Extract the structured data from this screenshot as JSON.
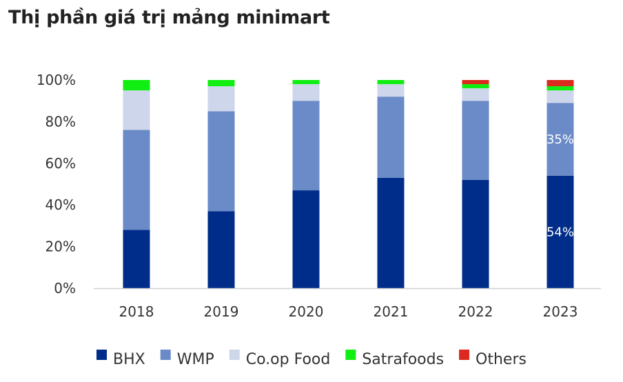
{
  "chart_data": {
    "type": "bar",
    "stacked": true,
    "title": "Thị phần giá trị mảng minimart",
    "xlabel": "",
    "ylabel": "",
    "categories": [
      "2018",
      "2019",
      "2020",
      "2021",
      "2022",
      "2023"
    ],
    "series": [
      {
        "name": "BHX",
        "color": "#002D8A",
        "values": [
          28,
          37,
          47,
          53,
          52,
          54
        ]
      },
      {
        "name": "WMP",
        "color": "#6A8AC8",
        "values": [
          48,
          48,
          43,
          39,
          38,
          35
        ]
      },
      {
        "name": "Co.op Food",
        "color": "#CDD6EA",
        "values": [
          19,
          12,
          8,
          6,
          6,
          6
        ]
      },
      {
        "name": "Satrafoods",
        "color": "#11EE11",
        "values": [
          5,
          3,
          2,
          2,
          2,
          2
        ]
      },
      {
        "name": "Others",
        "color": "#DB2A1E",
        "values": [
          0,
          0,
          0,
          0,
          2,
          3
        ]
      }
    ],
    "ylim": [
      0,
      100
    ],
    "yticks": [
      0,
      20,
      40,
      60,
      80,
      100
    ],
    "ytick_labels": [
      "0%",
      "20%",
      "40%",
      "60%",
      "80%",
      "100%"
    ],
    "grid": false,
    "legend_position": "bottom",
    "annotations": [
      {
        "category": "2023",
        "series": "BHX",
        "text": "54%"
      },
      {
        "category": "2023",
        "series": "WMP",
        "text": "35%"
      }
    ]
  }
}
